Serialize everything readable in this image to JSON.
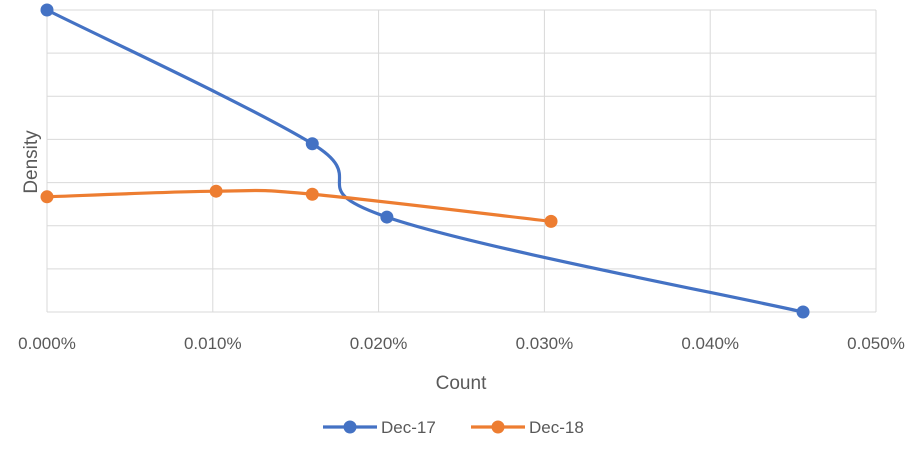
{
  "chart_data": {
    "type": "line",
    "title": "",
    "xlabel": "Count",
    "ylabel": "Density",
    "x_ticks": [
      "0.000%",
      "0.010%",
      "0.020%",
      "0.030%",
      "0.040%",
      "0.050%"
    ],
    "xlim": [
      0,
      0.05
    ],
    "ylim": [
      0,
      7
    ],
    "y_ticks_shown": false,
    "grid": true,
    "smooth": true,
    "legend_position": "bottom",
    "series": [
      {
        "name": "Dec-17",
        "color": "#4472C4",
        "points": [
          [
            0.0,
            7.0
          ],
          [
            0.016,
            3.9
          ],
          [
            0.0205,
            2.2
          ],
          [
            0.0456,
            0.0
          ]
        ]
      },
      {
        "name": "Dec-18",
        "color": "#ED7D31",
        "points": [
          [
            0.0,
            2.67
          ],
          [
            0.0102,
            2.8
          ],
          [
            0.016,
            2.73
          ],
          [
            0.0304,
            2.1
          ]
        ]
      }
    ]
  }
}
